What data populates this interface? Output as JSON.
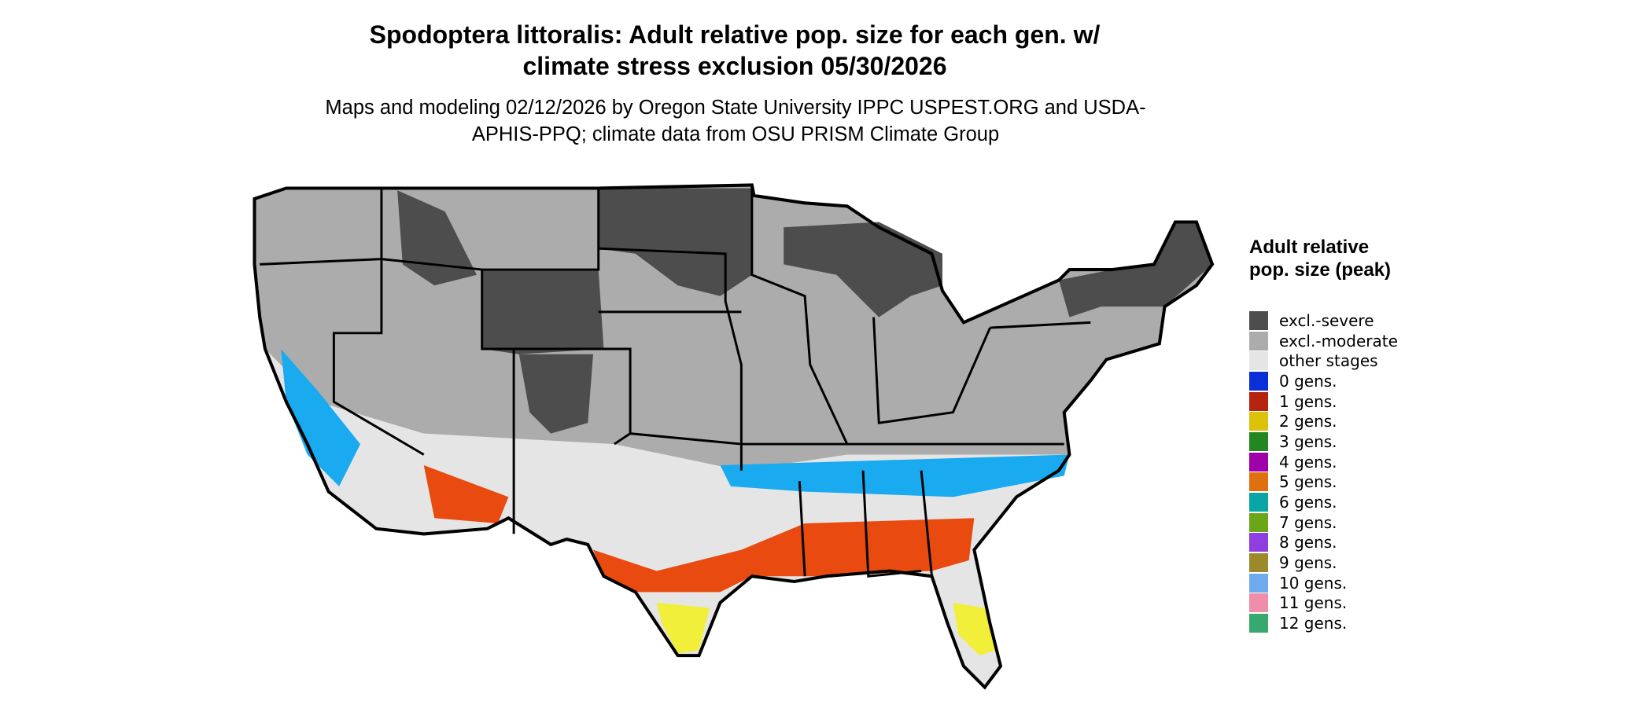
{
  "title": "Spodoptera littoralis: Adult relative pop. size for each gen. w/ climate stress exclusion 05/30/2026",
  "subtitle": "Maps and modeling 02/12/2026 by Oregon State University IPPC USPEST.ORG and USDA-APHIS-PPQ; climate data from OSU PRISM Climate Group",
  "legend": {
    "title": "Adult relative pop. size (peak)",
    "items": [
      {
        "label": "excl.-severe",
        "color": "#4d4d4d"
      },
      {
        "label": "excl.-moderate",
        "color": "#acacac"
      },
      {
        "label": "other stages",
        "color": "#e5e5e5"
      },
      {
        "label": "0 gens.",
        "color": "#0a2fd6"
      },
      {
        "label": "1 gens.",
        "color": "#b5240f"
      },
      {
        "label": "2 gens.",
        "color": "#dcc20a"
      },
      {
        "label": "3 gens.",
        "color": "#22871e"
      },
      {
        "label": "4 gens.",
        "color": "#a000aa"
      },
      {
        "label": "5 gens.",
        "color": "#df7010"
      },
      {
        "label": "6 gens.",
        "color": "#0aa6a6"
      },
      {
        "label": "7 gens.",
        "color": "#6aa616"
      },
      {
        "label": "8 gens.",
        "color": "#8f3ee0"
      },
      {
        "label": "9 gens.",
        "color": "#9c8a2a"
      },
      {
        "label": "10 gens.",
        "color": "#6eaaee"
      },
      {
        "label": "11 gens.",
        "color": "#ee8ea8"
      },
      {
        "label": "12 gens.",
        "color": "#36aa6e"
      }
    ]
  }
}
